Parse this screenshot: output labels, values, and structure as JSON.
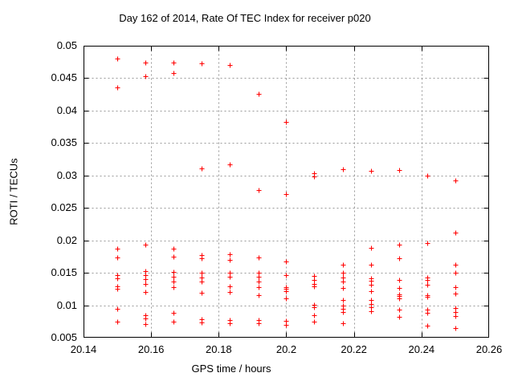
{
  "title": "Day 162 of 2014, Rate Of TEC Index for receiver p020",
  "chart_data": {
    "type": "scatter",
    "title": "Day 162 of 2014, Rate Of TEC Index for receiver p020",
    "xlabel": "GPS time / hours",
    "ylabel": "ROTI / TECUs",
    "xlim": [
      20.14,
      20.26
    ],
    "ylim": [
      0.005,
      0.05
    ],
    "grid": true,
    "legend_position": "none",
    "marker": {
      "shape": "plus",
      "color": "#ff0000",
      "size": 7
    },
    "grid_color": "#9a9a9a",
    "axis_color": "#000000",
    "xticks": [
      {
        "v": 20.14,
        "label": "20.14"
      },
      {
        "v": 20.16,
        "label": "20.16"
      },
      {
        "v": 20.18,
        "label": "20.18"
      },
      {
        "v": 20.2,
        "label": "20.2"
      },
      {
        "v": 20.22,
        "label": "20.22"
      },
      {
        "v": 20.24,
        "label": "20.24"
      },
      {
        "v": 20.26,
        "label": "20.26"
      }
    ],
    "yticks": [
      {
        "v": 0.005,
        "label": "0.005"
      },
      {
        "v": 0.01,
        "label": "0.01"
      },
      {
        "v": 0.015,
        "label": "0.015"
      },
      {
        "v": 0.02,
        "label": "0.02"
      },
      {
        "v": 0.025,
        "label": "0.025"
      },
      {
        "v": 0.03,
        "label": "0.03"
      },
      {
        "v": 0.035,
        "label": "0.035"
      },
      {
        "v": 0.04,
        "label": "0.04"
      },
      {
        "v": 0.045,
        "label": "0.045"
      },
      {
        "v": 0.05,
        "label": "0.05"
      }
    ],
    "series": [
      {
        "name": "ROTI",
        "points": [
          [
            20.15,
            0.048
          ],
          [
            20.15,
            0.0436
          ],
          [
            20.15,
            0.0187
          ],
          [
            20.15,
            0.0174
          ],
          [
            20.15,
            0.0147
          ],
          [
            20.15,
            0.0141
          ],
          [
            20.15,
            0.0129
          ],
          [
            20.15,
            0.0126
          ],
          [
            20.15,
            0.0095
          ],
          [
            20.15,
            0.0075
          ],
          [
            20.1583,
            0.0474
          ],
          [
            20.1583,
            0.0453
          ],
          [
            20.1583,
            0.0193
          ],
          [
            20.1583,
            0.0152
          ],
          [
            20.1583,
            0.0146
          ],
          [
            20.1583,
            0.014
          ],
          [
            20.1583,
            0.0133
          ],
          [
            20.1583,
            0.0121
          ],
          [
            20.1583,
            0.0085
          ],
          [
            20.1583,
            0.008
          ],
          [
            20.1583,
            0.0071
          ],
          [
            20.1667,
            0.0474
          ],
          [
            20.1667,
            0.0458
          ],
          [
            20.1667,
            0.0187
          ],
          [
            20.1667,
            0.0175
          ],
          [
            20.1667,
            0.0151
          ],
          [
            20.1667,
            0.0144
          ],
          [
            20.1667,
            0.0137
          ],
          [
            20.1667,
            0.0128
          ],
          [
            20.1667,
            0.0088
          ],
          [
            20.1667,
            0.0075
          ],
          [
            20.175,
            0.0473
          ],
          [
            20.175,
            0.0311
          ],
          [
            20.175,
            0.0177
          ],
          [
            20.175,
            0.0172
          ],
          [
            20.175,
            0.015
          ],
          [
            20.175,
            0.0143
          ],
          [
            20.175,
            0.0136
          ],
          [
            20.175,
            0.0119
          ],
          [
            20.175,
            0.0078
          ],
          [
            20.175,
            0.0074
          ],
          [
            20.1833,
            0.047
          ],
          [
            20.1833,
            0.0317
          ],
          [
            20.1833,
            0.0179
          ],
          [
            20.1833,
            0.017
          ],
          [
            20.1833,
            0.015
          ],
          [
            20.1833,
            0.0144
          ],
          [
            20.1833,
            0.0129
          ],
          [
            20.1833,
            0.0121
          ],
          [
            20.1833,
            0.0077
          ],
          [
            20.1833,
            0.0072
          ],
          [
            20.1917,
            0.0426
          ],
          [
            20.1917,
            0.0277
          ],
          [
            20.1917,
            0.0174
          ],
          [
            20.1917,
            0.015
          ],
          [
            20.1917,
            0.0144
          ],
          [
            20.1917,
            0.0137
          ],
          [
            20.1917,
            0.0128
          ],
          [
            20.1917,
            0.0116
          ],
          [
            20.1917,
            0.0077
          ],
          [
            20.1917,
            0.0072
          ],
          [
            20.2,
            0.0383
          ],
          [
            20.2,
            0.0271
          ],
          [
            20.2,
            0.0167
          ],
          [
            20.2,
            0.0147
          ],
          [
            20.2,
            0.0128
          ],
          [
            20.2,
            0.0125
          ],
          [
            20.2,
            0.0122
          ],
          [
            20.2,
            0.0111
          ],
          [
            20.2,
            0.0076
          ],
          [
            20.2,
            0.007
          ],
          [
            20.2083,
            0.0304
          ],
          [
            20.2083,
            0.0298
          ],
          [
            20.2083,
            0.0145
          ],
          [
            20.2083,
            0.0139
          ],
          [
            20.2083,
            0.0133
          ],
          [
            20.2083,
            0.0129
          ],
          [
            20.2083,
            0.0101
          ],
          [
            20.2083,
            0.0097
          ],
          [
            20.2083,
            0.0084
          ],
          [
            20.2083,
            0.0075
          ],
          [
            20.2167,
            0.031
          ],
          [
            20.2167,
            0.0162
          ],
          [
            20.2167,
            0.015
          ],
          [
            20.2167,
            0.0143
          ],
          [
            20.2167,
            0.0137
          ],
          [
            20.2167,
            0.0127
          ],
          [
            20.2167,
            0.0108
          ],
          [
            20.2167,
            0.01
          ],
          [
            20.2167,
            0.0095
          ],
          [
            20.2167,
            0.009
          ],
          [
            20.2167,
            0.0072
          ],
          [
            20.225,
            0.0307
          ],
          [
            20.225,
            0.0188
          ],
          [
            20.225,
            0.0162
          ],
          [
            20.225,
            0.0141
          ],
          [
            20.225,
            0.0138
          ],
          [
            20.225,
            0.0131
          ],
          [
            20.225,
            0.0122
          ],
          [
            20.225,
            0.0108
          ],
          [
            20.225,
            0.0102
          ],
          [
            20.225,
            0.0097
          ],
          [
            20.225,
            0.0091
          ],
          [
            20.2333,
            0.0308
          ],
          [
            20.2333,
            0.0194
          ],
          [
            20.2333,
            0.0172
          ],
          [
            20.2333,
            0.0139
          ],
          [
            20.2333,
            0.0127
          ],
          [
            20.2333,
            0.0117
          ],
          [
            20.2333,
            0.0114
          ],
          [
            20.2333,
            0.0111
          ],
          [
            20.2333,
            0.0093
          ],
          [
            20.2333,
            0.0082
          ],
          [
            20.2417,
            0.03
          ],
          [
            20.2417,
            0.0196
          ],
          [
            20.2417,
            0.0143
          ],
          [
            20.2417,
            0.0139
          ],
          [
            20.2417,
            0.0131
          ],
          [
            20.2417,
            0.0116
          ],
          [
            20.2417,
            0.0113
          ],
          [
            20.2417,
            0.0093
          ],
          [
            20.2417,
            0.0088
          ],
          [
            20.2417,
            0.0069
          ],
          [
            20.25,
            0.0292
          ],
          [
            20.25,
            0.0212
          ],
          [
            20.25,
            0.0162
          ],
          [
            20.25,
            0.015
          ],
          [
            20.25,
            0.0128
          ],
          [
            20.25,
            0.0118
          ],
          [
            20.25,
            0.0096
          ],
          [
            20.25,
            0.0089
          ],
          [
            20.25,
            0.0083
          ],
          [
            20.25,
            0.0065
          ]
        ]
      }
    ]
  }
}
